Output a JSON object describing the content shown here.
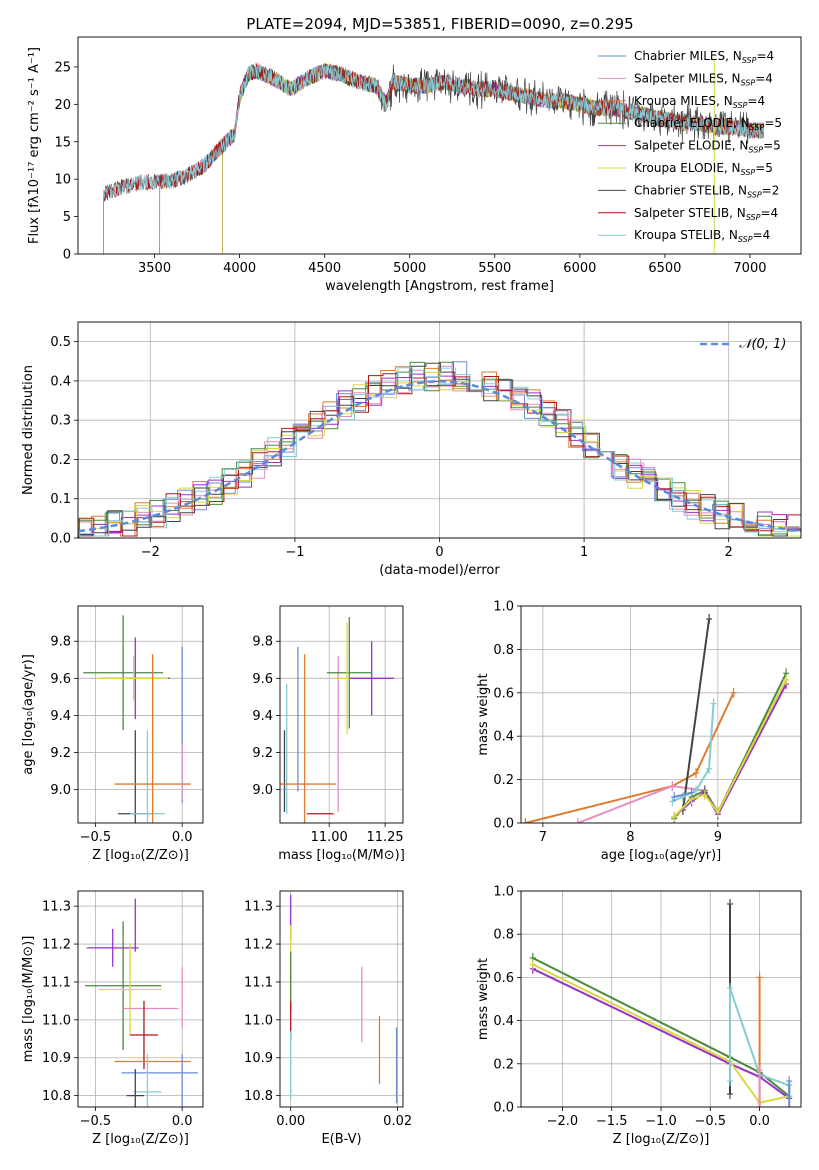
{
  "figure_title": "PLATE=2094, MJD=53851, FIBERID=0090, z=0.295",
  "colors": {
    "chabrier_miles": "#6a8ed4",
    "salpeter_miles": "#e88cc4",
    "kroupa_miles": "#e07b30",
    "chabrier_elodie": "#4a8a3c",
    "salpeter_elodie": "#9b30c8",
    "kroupa_elodie": "#d8d840",
    "chabrier_stelib": "#444444",
    "salpeter_stelib": "#b01818",
    "kroupa_stelib": "#86cbd6",
    "gauss": "#5b8bd8",
    "grid": "#b0b0b0"
  },
  "chart_data": [
    {
      "id": "spectrum",
      "type": "line",
      "xlabel": "wavelength [Angstrom, rest frame]",
      "ylabel": "Flux [fλ10⁻¹⁷ erg cm⁻² s⁻¹ A⁻¹]",
      "xlim": [
        3050,
        7300
      ],
      "ylim": [
        0,
        29
      ],
      "xticks": [
        "3500",
        "4000",
        "4500",
        "5000",
        "5500",
        "6000",
        "6500",
        "7000"
      ],
      "xtick_values": [
        3500,
        4000,
        4500,
        5000,
        5500,
        6000,
        6500,
        7000
      ],
      "yticks": [
        "0",
        "5",
        "10",
        "15",
        "20",
        "25"
      ],
      "ytick_values": [
        0,
        5,
        10,
        15,
        20,
        25
      ],
      "grid": false,
      "legend_position": "top-right",
      "continuum": {
        "x": [
          3200,
          3250,
          3400,
          3600,
          3700,
          3800,
          3900,
          3970,
          4000,
          4050,
          4100,
          4200,
          4300,
          4400,
          4500,
          4600,
          4700,
          4800,
          4860,
          4900,
          5000,
          5100,
          5200,
          5300,
          5400,
          5500,
          5600,
          5700,
          5800,
          5900,
          6000,
          6100,
          6200,
          6300,
          6400,
          6500,
          6600,
          6700,
          6800,
          6900,
          7000,
          7080
        ],
        "y": [
          8,
          8.5,
          9.5,
          9.8,
          10.5,
          12,
          14.5,
          16,
          21,
          24,
          24.5,
          23.5,
          22,
          23.5,
          24.5,
          24,
          23,
          22.5,
          20,
          23,
          22.5,
          22.5,
          23,
          22.5,
          22,
          22,
          21.5,
          21,
          20.5,
          20.5,
          20,
          19.5,
          19.5,
          19,
          18.5,
          18,
          17.5,
          17.5,
          17,
          17,
          16.5,
          16.5
        ]
      },
      "series": [
        {
          "name": "Chabrier MILES",
          "nssp": "4",
          "color_key": "chabrier_miles",
          "start": 3530
        },
        {
          "name": "Salpeter MILES",
          "nssp": "4",
          "color_key": "salpeter_miles",
          "start": 3530
        },
        {
          "name": "Kroupa MILES",
          "nssp": "4",
          "color_key": "kroupa_miles",
          "start": 3530
        },
        {
          "name": "Chabrier ELODIE",
          "nssp": "5",
          "color_key": "chabrier_elodie",
          "start": 3900
        },
        {
          "name": "Salpeter ELODIE",
          "nssp": "5",
          "color_key": "salpeter_elodie",
          "start": 3900
        },
        {
          "name": "Kroupa ELODIE",
          "nssp": "5",
          "color_key": "kroupa_elodie",
          "start": 3900
        },
        {
          "name": "Chabrier STELIB",
          "nssp": "2",
          "color_key": "chabrier_stelib",
          "start": 3200
        },
        {
          "name": "Salpeter STELIB",
          "nssp": "4",
          "color_key": "salpeter_stelib",
          "start": 3200
        },
        {
          "name": "Kroupa STELIB",
          "nssp": "4",
          "color_key": "kroupa_stelib",
          "start": 3200
        }
      ]
    },
    {
      "id": "residuals",
      "type": "histogram",
      "xlabel": "(data-model)/error",
      "ylabel": "Normed distribution",
      "xlim": [
        -2.5,
        2.5
      ],
      "ylim": [
        0,
        0.55
      ],
      "xticks": [
        "−2",
        "−1",
        "0",
        "1",
        "2"
      ],
      "xtick_values": [
        -2,
        -1,
        0,
        1,
        2
      ],
      "yticks": [
        "0.0",
        "0.1",
        "0.2",
        "0.3",
        "0.4",
        "0.5"
      ],
      "ytick_values": [
        0,
        0.1,
        0.2,
        0.3,
        0.4,
        0.5
      ],
      "grid": true,
      "legend_position": "top-right",
      "legend_label": "𝒩(0, 1)",
      "bin_width": 0.1,
      "bin_start": -2.5,
      "series_color_keys": [
        "chabrier_miles",
        "salpeter_miles",
        "kroupa_miles",
        "chabrier_elodie",
        "salpeter_elodie",
        "kroupa_elodie",
        "chabrier_stelib",
        "salpeter_stelib",
        "kroupa_stelib"
      ]
    },
    {
      "id": "age_vs_Z",
      "type": "errorbar",
      "xlabel": "Z [log₁₀(Z/Z⊙)]",
      "ylabel": "age  [log₁₀(age/yr)]",
      "xlim": [
        -0.6,
        0.12
      ],
      "ylim": [
        8.82,
        9.99
      ],
      "xticks": [
        "−0.5",
        "0.0"
      ],
      "xtick_values": [
        -0.5,
        0.0
      ],
      "yticks": [
        "9.0",
        "9.2",
        "9.4",
        "9.6",
        "9.8"
      ],
      "ytick_values": [
        9.0,
        9.2,
        9.4,
        9.6,
        9.8
      ],
      "grid": true,
      "points": [
        {
          "color_key": "chabrier_elodie",
          "x": -0.34,
          "xerr": 0.23,
          "y": 9.63,
          "yerr": 0.31
        },
        {
          "color_key": "salpeter_elodie",
          "x": -0.27,
          "xerr": 0.2,
          "y": 9.6,
          "yerr": 0.22
        },
        {
          "color_key": "kroupa_elodie",
          "x": -0.28,
          "xerr": 0.2,
          "y": 9.6,
          "yerr": 0.12
        },
        {
          "color_key": "chabrier_stelib",
          "x": -0.27,
          "xerr": 0.1,
          "y": 8.87,
          "yerr": 0.45
        },
        {
          "color_key": "kroupa_stelib",
          "x": -0.2,
          "xerr": 0.1,
          "y": 8.87,
          "yerr": 0.45
        },
        {
          "color_key": "kroupa_miles",
          "x": -0.17,
          "xerr": 0.22,
          "y": 9.03,
          "yerr": 0.7
        },
        {
          "color_key": "chabrier_miles",
          "x": 0.0,
          "xerr": 0.0,
          "y": 9.35,
          "yerr": 0.42
        },
        {
          "color_key": "salpeter_miles",
          "x": 0.0,
          "xerr": 0.0,
          "y": 9.1,
          "yerr": 0.15
        }
      ]
    },
    {
      "id": "age_vs_mass",
      "type": "errorbar",
      "xlabel": "mass [log₁₀(M/M⊙)]",
      "ylabel": "",
      "xlim": [
        10.78,
        11.33
      ],
      "ylim": [
        8.82,
        9.99
      ],
      "xticks": [
        "11.00",
        "11.25"
      ],
      "xtick_values": [
        11.0,
        11.25
      ],
      "yticks": [
        "9.0",
        "9.2",
        "9.4",
        "9.6",
        "9.8"
      ],
      "ytick_values": [
        9.0,
        9.2,
        9.4,
        9.6,
        9.8
      ],
      "grid": true,
      "points": [
        {
          "color_key": "chabrier_stelib",
          "x": 10.8,
          "xerr": 0.0,
          "y": 9.1,
          "yerr": 0.22
        },
        {
          "color_key": "kroupa_stelib",
          "x": 10.81,
          "xerr": 0.0,
          "y": 9.22,
          "yerr": 0.35
        },
        {
          "color_key": "chabrier_miles",
          "x": 10.86,
          "xerr": 0.0,
          "y": 9.38,
          "yerr": 0.39
        },
        {
          "color_key": "kroupa_miles",
          "x": 10.89,
          "xerr": 0.14,
          "y": 9.03,
          "yerr": 0.7
        },
        {
          "color_key": "salpeter_stelib",
          "x": 10.96,
          "xerr": 0.06,
          "y": 8.87,
          "yerr": 0.0
        },
        {
          "color_key": "salpeter_miles",
          "x": 11.04,
          "xerr": 0.0,
          "y": 9.3,
          "yerr": 0.42
        },
        {
          "color_key": "chabrier_elodie",
          "x": 11.09,
          "xerr": 0.1,
          "y": 9.63,
          "yerr": 0.3
        },
        {
          "color_key": "kroupa_elodie",
          "x": 11.08,
          "xerr": 0.06,
          "y": 9.6,
          "yerr": 0.3
        },
        {
          "color_key": "salpeter_elodie",
          "x": 11.19,
          "xerr": 0.1,
          "y": 9.6,
          "yerr": 0.2
        }
      ]
    },
    {
      "id": "weight_vs_age",
      "type": "line",
      "xlabel": "age  [log₁₀(age/yr)]",
      "ylabel": "mass weight",
      "xlim": [
        6.75,
        9.95
      ],
      "ylim": [
        0,
        1.0
      ],
      "xticks": [
        "7",
        "8",
        "9"
      ],
      "xtick_values": [
        7,
        8,
        9
      ],
      "yticks": [
        "0.0",
        "0.2",
        "0.4",
        "0.6",
        "0.8",
        "1.0"
      ],
      "ytick_values": [
        0,
        0.2,
        0.4,
        0.6,
        0.8,
        1.0
      ],
      "grid": true,
      "series": [
        {
          "color_key": "kroupa_miles",
          "x": [
            6.8,
            8.48,
            8.75,
            9.18
          ],
          "y": [
            0.0,
            0.17,
            0.23,
            0.6
          ]
        },
        {
          "color_key": "salpeter_miles",
          "x": [
            7.4,
            8.48,
            8.85,
            9.0
          ],
          "y": [
            0.0,
            0.17,
            0.15,
            0.05
          ]
        },
        {
          "color_key": "chabrier_stelib",
          "x": [
            8.6,
            8.9
          ],
          "y": [
            0.06,
            0.94
          ]
        },
        {
          "color_key": "kroupa_stelib",
          "x": [
            8.48,
            8.6,
            8.75,
            8.9,
            8.95
          ],
          "y": [
            0.1,
            0.12,
            0.15,
            0.25,
            0.55
          ]
        },
        {
          "color_key": "chabrier_elodie",
          "x": [
            8.5,
            8.7,
            8.85,
            9.0,
            9.78
          ],
          "y": [
            0.02,
            0.12,
            0.15,
            0.05,
            0.69
          ]
        },
        {
          "color_key": "salpeter_elodie",
          "x": [
            8.5,
            8.7,
            8.85,
            9.0,
            9.78
          ],
          "y": [
            0.03,
            0.1,
            0.14,
            0.04,
            0.64
          ]
        },
        {
          "color_key": "kroupa_elodie",
          "x": [
            8.5,
            8.7,
            8.85,
            9.0,
            9.78
          ],
          "y": [
            0.03,
            0.11,
            0.13,
            0.05,
            0.66
          ]
        },
        {
          "color_key": "chabrier_miles",
          "x": [
            8.5,
            8.7
          ],
          "y": [
            0.12,
            0.14
          ]
        }
      ]
    },
    {
      "id": "mass_vs_Z",
      "type": "errorbar",
      "xlabel": "Z [log₁₀(Z/Z⊙)]",
      "ylabel": "mass [log₁₀(M/M⊙)]",
      "xlim": [
        -0.6,
        0.12
      ],
      "ylim": [
        10.77,
        11.34
      ],
      "xticks": [
        "−0.5",
        "0.0"
      ],
      "xtick_values": [
        -0.5,
        0.0
      ],
      "yticks": [
        "10.8",
        "10.9",
        "11.0",
        "11.1",
        "11.2",
        "11.3"
      ],
      "ytick_values": [
        10.8,
        10.9,
        11.0,
        11.1,
        11.2,
        11.3
      ],
      "grid": true,
      "points": [
        {
          "color_key": "salpeter_elodie",
          "x": -0.4,
          "xerr": 0.15,
          "y": 11.19,
          "yerr": 0.05
        },
        {
          "color_key": "salpeter_elodie",
          "x": -0.27,
          "xerr": 0.0,
          "y": 11.25,
          "yerr": 0.07
        },
        {
          "color_key": "chabrier_elodie",
          "x": -0.34,
          "xerr": 0.22,
          "y": 11.09,
          "yerr": 0.17
        },
        {
          "color_key": "kroupa_elodie",
          "x": -0.3,
          "xerr": 0.18,
          "y": 11.08,
          "yerr": 0.12
        },
        {
          "color_key": "salpeter_miles",
          "x": -0.18,
          "xerr": 0.16,
          "y": 11.03,
          "yerr": 0.0
        },
        {
          "color_key": "salpeter_miles",
          "x": 0.0,
          "xerr": 0.0,
          "y": 11.06,
          "yerr": 0.08
        },
        {
          "color_key": "salpeter_stelib",
          "x": -0.22,
          "xerr": 0.08,
          "y": 10.96,
          "yerr": 0.09
        },
        {
          "color_key": "kroupa_miles",
          "x": -0.17,
          "xerr": 0.22,
          "y": 10.89,
          "yerr": 0.0
        },
        {
          "color_key": "chabrier_miles",
          "x": -0.13,
          "xerr": 0.22,
          "y": 10.86,
          "yerr": 0.0
        },
        {
          "color_key": "kroupa_stelib",
          "x": -0.2,
          "xerr": 0.08,
          "y": 10.81,
          "yerr": 0.1
        },
        {
          "color_key": "chabrier_stelib",
          "x": -0.27,
          "xerr": 0.05,
          "y": 10.8,
          "yerr": 0.07
        },
        {
          "color_key": "chabrier_miles",
          "x": 0.0,
          "xerr": 0.0,
          "y": 10.84,
          "yerr": 0.07
        }
      ]
    },
    {
      "id": "mass_vs_ebv",
      "type": "errorbar",
      "xlabel": "E(B-V)",
      "ylabel": "",
      "xlim": [
        -0.002,
        0.021
      ],
      "ylim": [
        10.77,
        11.34
      ],
      "xticks": [
        "0.00",
        "0.02"
      ],
      "xtick_values": [
        0.0,
        0.02
      ],
      "yticks": [
        "10.8",
        "10.9",
        "11.0",
        "11.1",
        "11.2",
        "11.3"
      ],
      "ytick_values": [
        10.8,
        10.9,
        11.0,
        11.1,
        11.2,
        11.3
      ],
      "grid": true,
      "points": [
        {
          "color_key": "salpeter_elodie",
          "x": 0.0,
          "xerr": 0.0,
          "y": 11.27,
          "yerr": 0.06
        },
        {
          "color_key": "kroupa_elodie",
          "x": 0.0,
          "xerr": 0.0,
          "y": 11.15,
          "yerr": 0.1
        },
        {
          "color_key": "chabrier_elodie",
          "x": 0.0,
          "xerr": 0.0,
          "y": 11.1,
          "yerr": 0.08
        },
        {
          "color_key": "salpeter_stelib",
          "x": 0.0,
          "xerr": 0.0,
          "y": 11.0,
          "yerr": 0.05
        },
        {
          "color_key": "kroupa_stelib",
          "x": 0.0,
          "xerr": 0.0,
          "y": 10.88,
          "yerr": 0.09
        },
        {
          "color_key": "salpeter_miles",
          "x": 0.0133,
          "xerr": 0.0,
          "y": 11.04,
          "yerr": 0.1
        },
        {
          "color_key": "kroupa_miles",
          "x": 0.0166,
          "xerr": 0.0,
          "y": 10.92,
          "yerr": 0.09
        },
        {
          "color_key": "chabrier_miles",
          "x": 0.0198,
          "xerr": 0.0,
          "y": 10.88,
          "yerr": 0.1
        }
      ]
    },
    {
      "id": "weight_vs_Z",
      "type": "line",
      "xlabel": "Z [log₁₀(Z/Z⊙)]",
      "ylabel": "mass weight",
      "xlim": [
        -2.42,
        0.42
      ],
      "ylim": [
        0,
        1.0
      ],
      "xticks": [
        "−2.0",
        "−1.5",
        "−1.0",
        "−0.5",
        "0.0"
      ],
      "xtick_values": [
        -2.0,
        -1.5,
        -1.0,
        -0.5,
        0.0
      ],
      "yticks": [
        "0.0",
        "0.2",
        "0.4",
        "0.6",
        "0.8",
        "1.0"
      ],
      "ytick_values": [
        0,
        0.2,
        0.4,
        0.6,
        0.8,
        1.0
      ],
      "grid": true,
      "series": [
        {
          "color_key": "chabrier_elodie",
          "x": [
            -2.3,
            -0.3,
            0.0,
            0.3,
            0.3
          ],
          "y": [
            0.69,
            0.23,
            0.16,
            0.05,
            0.1
          ]
        },
        {
          "color_key": "salpeter_elodie",
          "x": [
            -2.3,
            -0.3,
            0.0,
            0.3
          ],
          "y": [
            0.64,
            0.2,
            0.14,
            0.04
          ]
        },
        {
          "color_key": "kroupa_elodie",
          "x": [
            -2.3,
            -0.3,
            0.0,
            0.3
          ],
          "y": [
            0.66,
            0.21,
            0.02,
            0.05
          ]
        },
        {
          "color_key": "chabrier_stelib",
          "x": [
            -0.3,
            -0.3
          ],
          "y": [
            0.06,
            0.94
          ]
        },
        {
          "color_key": "kroupa_stelib",
          "x": [
            -0.3,
            -0.3,
            0.0,
            0.3,
            0.3
          ],
          "y": [
            0.12,
            0.55,
            0.15,
            0.1,
            0.05
          ]
        },
        {
          "color_key": "kroupa_miles",
          "x": [
            0.0,
            0.0
          ],
          "y": [
            0.0,
            0.6
          ]
        },
        {
          "color_key": "salpeter_miles",
          "x": [
            0.0,
            0.0
          ],
          "y": [
            0.0,
            0.17
          ]
        },
        {
          "color_key": "chabrier_miles",
          "x": [
            0.3,
            0.3
          ],
          "y": [
            0.0,
            0.12
          ]
        }
      ]
    }
  ]
}
